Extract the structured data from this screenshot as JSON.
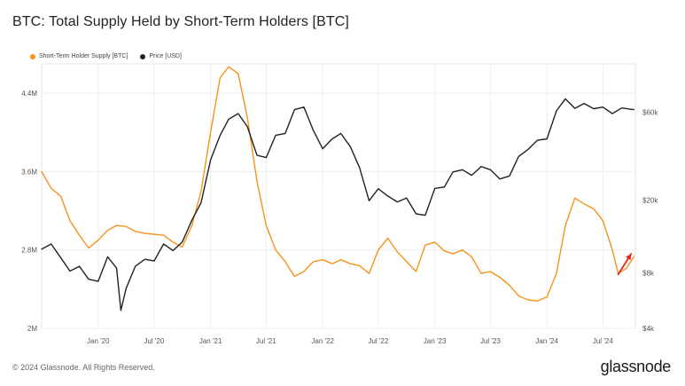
{
  "title": "BTC: Total Supply Held by Short-Term Holders [BTC]",
  "footer": "© 2024 Glassnode. All Rights Reserved.",
  "logo": "glassnode",
  "chart_data": {
    "type": "line",
    "grid": true,
    "legend_placement": "top-left",
    "x_ticks": [
      "Jan '20",
      "Jul '20",
      "Jan '21",
      "Jul '21",
      "Jan '22",
      "Jul '22",
      "Jan '23",
      "Jul '23",
      "Jan '24",
      "Jul '24"
    ],
    "x_tick_dates": [
      "2020-01-01",
      "2020-07-01",
      "2021-01-01",
      "2021-07-01",
      "2022-01-01",
      "2022-07-01",
      "2023-01-01",
      "2023-07-01",
      "2024-01-01",
      "2024-07-01"
    ],
    "xlim": [
      "2019-07-01",
      "2024-10-15"
    ],
    "left_axis": {
      "ticks": [
        "2M",
        "2.8M",
        "3.6M",
        "4.4M"
      ],
      "tick_values": [
        2000000,
        2800000,
        3600000,
        4400000
      ],
      "ylim": [
        2000000,
        4700000
      ]
    },
    "right_axis": {
      "scale": "log",
      "ticks": [
        "$4k",
        "$8k",
        "$20k",
        "$60k"
      ],
      "tick_values": [
        4000,
        8000,
        20000,
        60000
      ],
      "ylim": [
        4000,
        110000
      ]
    },
    "annotation": {
      "type": "arrow",
      "color": "#e0241b",
      "from": [
        "2024-08-20",
        2550000
      ],
      "to": [
        "2024-10-01",
        2760000
      ]
    },
    "series": [
      {
        "name": "Short-Term Holder Supply [BTC]",
        "axis": "left",
        "color": "#f7931a",
        "points": [
          [
            "2019-07-01",
            3600000
          ],
          [
            "2019-08-01",
            3430000
          ],
          [
            "2019-09-01",
            3350000
          ],
          [
            "2019-10-01",
            3100000
          ],
          [
            "2019-11-01",
            2950000
          ],
          [
            "2019-12-01",
            2820000
          ],
          [
            "2020-01-01",
            2900000
          ],
          [
            "2020-02-01",
            3000000
          ],
          [
            "2020-03-01",
            3050000
          ],
          [
            "2020-04-01",
            3040000
          ],
          [
            "2020-05-01",
            2990000
          ],
          [
            "2020-06-01",
            2970000
          ],
          [
            "2020-07-01",
            2960000
          ],
          [
            "2020-08-01",
            2950000
          ],
          [
            "2020-09-01",
            2880000
          ],
          [
            "2020-10-01",
            2830000
          ],
          [
            "2020-11-01",
            3050000
          ],
          [
            "2020-12-01",
            3400000
          ],
          [
            "2021-01-01",
            4000000
          ],
          [
            "2021-02-01",
            4560000
          ],
          [
            "2021-03-01",
            4670000
          ],
          [
            "2021-04-01",
            4600000
          ],
          [
            "2021-05-01",
            4150000
          ],
          [
            "2021-06-01",
            3500000
          ],
          [
            "2021-07-01",
            3050000
          ],
          [
            "2021-08-01",
            2800000
          ],
          [
            "2021-09-01",
            2680000
          ],
          [
            "2021-10-01",
            2530000
          ],
          [
            "2021-11-01",
            2580000
          ],
          [
            "2021-12-01",
            2680000
          ],
          [
            "2022-01-01",
            2700000
          ],
          [
            "2022-02-01",
            2660000
          ],
          [
            "2022-03-01",
            2700000
          ],
          [
            "2022-04-01",
            2660000
          ],
          [
            "2022-05-01",
            2640000
          ],
          [
            "2022-06-01",
            2560000
          ],
          [
            "2022-07-01",
            2800000
          ],
          [
            "2022-08-01",
            2920000
          ],
          [
            "2022-09-01",
            2780000
          ],
          [
            "2022-10-01",
            2680000
          ],
          [
            "2022-11-01",
            2580000
          ],
          [
            "2022-12-01",
            2850000
          ],
          [
            "2023-01-01",
            2880000
          ],
          [
            "2023-02-01",
            2790000
          ],
          [
            "2023-03-01",
            2760000
          ],
          [
            "2023-04-01",
            2800000
          ],
          [
            "2023-05-01",
            2730000
          ],
          [
            "2023-06-01",
            2560000
          ],
          [
            "2023-07-01",
            2580000
          ],
          [
            "2023-08-01",
            2520000
          ],
          [
            "2023-09-01",
            2440000
          ],
          [
            "2023-10-01",
            2330000
          ],
          [
            "2023-11-01",
            2290000
          ],
          [
            "2023-12-01",
            2280000
          ],
          [
            "2024-01-01",
            2320000
          ],
          [
            "2024-02-01",
            2560000
          ],
          [
            "2024-03-01",
            3050000
          ],
          [
            "2024-04-01",
            3330000
          ],
          [
            "2024-05-01",
            3270000
          ],
          [
            "2024-06-01",
            3220000
          ],
          [
            "2024-07-01",
            3100000
          ],
          [
            "2024-08-01",
            2800000
          ],
          [
            "2024-08-20",
            2560000
          ],
          [
            "2024-09-15",
            2610000
          ],
          [
            "2024-10-10",
            2730000
          ]
        ]
      },
      {
        "name": "Price [USD]",
        "axis": "right",
        "color": "#222222",
        "points": [
          [
            "2019-07-01",
            10800
          ],
          [
            "2019-08-01",
            11500
          ],
          [
            "2019-09-01",
            9700
          ],
          [
            "2019-10-01",
            8200
          ],
          [
            "2019-11-01",
            8700
          ],
          [
            "2019-12-01",
            7400
          ],
          [
            "2020-01-01",
            7200
          ],
          [
            "2020-02-01",
            9800
          ],
          [
            "2020-03-01",
            8500
          ],
          [
            "2020-03-15",
            5000
          ],
          [
            "2020-04-01",
            6600
          ],
          [
            "2020-05-01",
            8700
          ],
          [
            "2020-06-01",
            9500
          ],
          [
            "2020-07-01",
            9300
          ],
          [
            "2020-08-01",
            11500
          ],
          [
            "2020-09-01",
            10600
          ],
          [
            "2020-10-01",
            11800
          ],
          [
            "2020-11-01",
            15500
          ],
          [
            "2020-12-01",
            19300
          ],
          [
            "2021-01-01",
            33000
          ],
          [
            "2021-02-01",
            45000
          ],
          [
            "2021-03-01",
            55000
          ],
          [
            "2021-04-01",
            59000
          ],
          [
            "2021-05-01",
            50000
          ],
          [
            "2021-06-01",
            35000
          ],
          [
            "2021-07-01",
            34000
          ],
          [
            "2021-08-01",
            45000
          ],
          [
            "2021-09-01",
            46000
          ],
          [
            "2021-10-01",
            62000
          ],
          [
            "2021-11-01",
            64000
          ],
          [
            "2021-12-01",
            48000
          ],
          [
            "2022-01-01",
            38000
          ],
          [
            "2022-02-01",
            43000
          ],
          [
            "2022-03-01",
            46000
          ],
          [
            "2022-04-01",
            39000
          ],
          [
            "2022-05-01",
            30000
          ],
          [
            "2022-06-01",
            19800
          ],
          [
            "2022-07-01",
            23000
          ],
          [
            "2022-08-01",
            21000
          ],
          [
            "2022-09-01",
            19500
          ],
          [
            "2022-10-01",
            20500
          ],
          [
            "2022-11-01",
            16800
          ],
          [
            "2022-12-01",
            16500
          ],
          [
            "2023-01-01",
            23100
          ],
          [
            "2023-02-01",
            23500
          ],
          [
            "2023-03-01",
            28400
          ],
          [
            "2023-04-01",
            29200
          ],
          [
            "2023-05-01",
            27200
          ],
          [
            "2023-06-01",
            30400
          ],
          [
            "2023-07-01",
            29200
          ],
          [
            "2023-08-01",
            26000
          ],
          [
            "2023-09-01",
            27000
          ],
          [
            "2023-10-01",
            34500
          ],
          [
            "2023-11-01",
            37700
          ],
          [
            "2023-12-01",
            42200
          ],
          [
            "2024-01-01",
            43000
          ],
          [
            "2024-02-01",
            61000
          ],
          [
            "2024-03-01",
            71000
          ],
          [
            "2024-04-01",
            63000
          ],
          [
            "2024-05-01",
            67000
          ],
          [
            "2024-06-01",
            62700
          ],
          [
            "2024-07-01",
            64000
          ],
          [
            "2024-08-01",
            59000
          ],
          [
            "2024-09-01",
            63300
          ],
          [
            "2024-10-10",
            62000
          ]
        ]
      }
    ]
  }
}
